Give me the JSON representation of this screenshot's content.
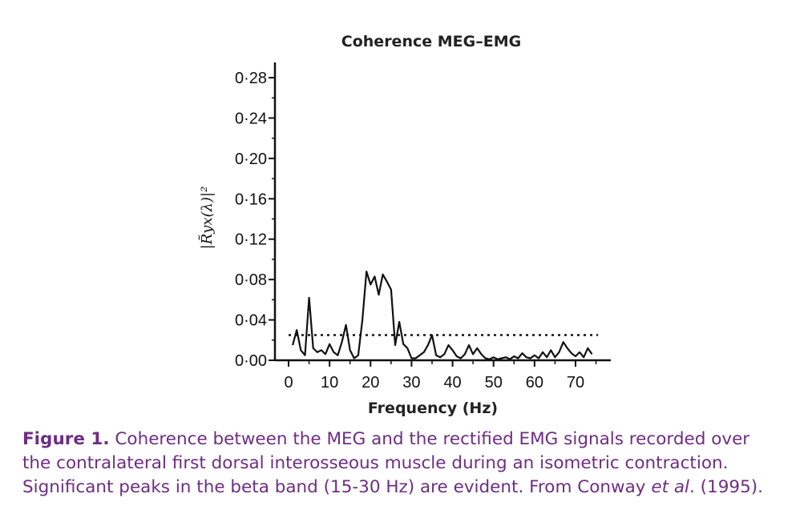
{
  "chart_data": {
    "type": "line",
    "title": "Coherence MEG–EMG",
    "xlabel": "Frequency (Hz)",
    "ylabel": "|R̃yx(λ)|²",
    "xlim": [
      -3,
      80
    ],
    "ylim": [
      0,
      0.29
    ],
    "x_ticks": [
      0,
      10,
      20,
      30,
      40,
      50,
      60,
      70
    ],
    "x_tick_labels": [
      "0",
      "10",
      "20",
      "30",
      "40",
      "50",
      "60",
      "70"
    ],
    "y_ticks": [
      0,
      0.04,
      0.08,
      0.12,
      0.16,
      0.2,
      0.24,
      0.28
    ],
    "y_tick_labels": [
      "0·00",
      "0·04",
      "0·08",
      "0·12",
      "0·16",
      "0·20",
      "0·24",
      "0·28"
    ],
    "grid": false,
    "series": [
      {
        "x": [
          1,
          2,
          3,
          4,
          5,
          6,
          7,
          8,
          9,
          10,
          11,
          12,
          13,
          14,
          15,
          16,
          17,
          18,
          19,
          20,
          21,
          22,
          23,
          24,
          25,
          26,
          27,
          28,
          29,
          30,
          31,
          32,
          33,
          34,
          35,
          36,
          37,
          38,
          39,
          40,
          41,
          42,
          43,
          44,
          45,
          46,
          47,
          48,
          49,
          50,
          51,
          52,
          53,
          54,
          55,
          56,
          57,
          58,
          59,
          60,
          61,
          62,
          63,
          64,
          65,
          66,
          67,
          68,
          69,
          70,
          71,
          72,
          73,
          74
        ],
        "values": [
          0.015,
          0.03,
          0.01,
          0.005,
          0.062,
          0.012,
          0.008,
          0.01,
          0.006,
          0.016,
          0.008,
          0.005,
          0.018,
          0.035,
          0.01,
          0.002,
          0.005,
          0.04,
          0.088,
          0.075,
          0.083,
          0.065,
          0.085,
          0.078,
          0.07,
          0.015,
          0.038,
          0.016,
          0.012,
          0.002,
          0.002,
          0.005,
          0.008,
          0.015,
          0.025,
          0.005,
          0.003,
          0.006,
          0.015,
          0.01,
          0.004,
          0.002,
          0.006,
          0.015,
          0.006,
          0.012,
          0.006,
          0.002,
          0.001,
          0.003,
          0.001,
          0.002,
          0.003,
          0.001,
          0.004,
          0.002,
          0.007,
          0.003,
          0.002,
          0.005,
          0.002,
          0.008,
          0.003,
          0.01,
          0.003,
          0.008,
          0.018,
          0.012,
          0.007,
          0.004,
          0.008,
          0.003,
          0.012,
          0.006
        ]
      }
    ],
    "significance_level": 0.025
  },
  "caption": {
    "lead": "Figure 1.",
    "line1": " Coherence between the MEG and the rectified EMG signals recorded over",
    "line2": "the contralateral first dorsal interosseous muscle during an isometric contraction.",
    "line3_pre": "Significant peaks in the beta band (15-30 Hz) are evident. From Conway ",
    "line3_italic": "et al",
    "line3_post": ". (1995)."
  },
  "colors": {
    "caption": "#6e2d83",
    "line": "#111111"
  }
}
